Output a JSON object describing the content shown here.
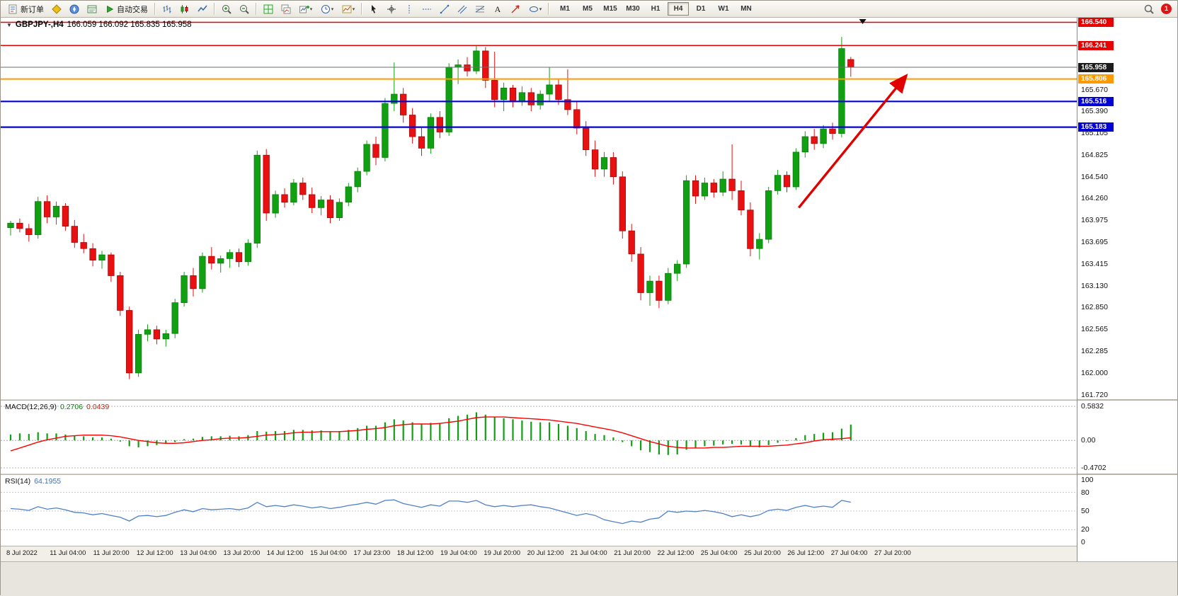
{
  "window": {
    "notification_count": "1"
  },
  "toolbar": {
    "new_order_label": "新订单",
    "auto_trading_label": "自动交易",
    "timeframes": [
      "M1",
      "M5",
      "M15",
      "M30",
      "H1",
      "H4",
      "D1",
      "W1",
      "MN"
    ],
    "active_timeframe": "H4",
    "icon_buttons": [
      "new-order",
      "market-watch",
      "navigator",
      "terminal",
      "auto-trading",
      "bar-chart",
      "candlestick-chart",
      "line-chart",
      "zoom-in",
      "zoom-out",
      "tile-windows",
      "cascade-windows",
      "indicators",
      "periods",
      "templates",
      "cursor",
      "crosshair",
      "vertical-line",
      "horizontal-line",
      "trendline",
      "channel",
      "fibonacci",
      "text",
      "arrows",
      "shapes",
      "search"
    ]
  },
  "chart": {
    "title_symbol": "GBPJPY-,H4",
    "title_ohlc": "166.059 166.092 165.835 165.958",
    "macd_label": "MACD(12,26,9)",
    "macd_values": {
      "main": "0.2706",
      "signal": "0.0439"
    },
    "rsi_label": "RSI(14)",
    "rsi_value": "64.1955",
    "price_ticks": [
      "165.670",
      "165.390",
      "165.105",
      "164.825",
      "164.540",
      "164.260",
      "163.975",
      "163.695",
      "163.415",
      "163.130",
      "162.850",
      "162.565",
      "162.285",
      "162.000",
      "161.720"
    ],
    "level_tags": [
      {
        "label": "166.540",
        "price": 166.54,
        "line_color": "#e80000",
        "line_width": 1.5,
        "tag_color": "#e80000"
      },
      {
        "label": "166.241",
        "price": 166.241,
        "line_color": "#e80000",
        "line_width": 1.5,
        "tag_color": "#e80000"
      },
      {
        "label": "165.958",
        "price": 165.958,
        "line_color": "#6e6e6e",
        "line_width": 1,
        "tag_color": "#1c1c1c"
      },
      {
        "label": "165.806",
        "price": 165.806,
        "line_color": "#ff9a00",
        "line_width": 2,
        "tag_color": "#ff9a00"
      },
      {
        "label": "165.516",
        "price": 165.516,
        "line_color": "#0202d6",
        "line_width": 2.2,
        "tag_color": "#0202d6"
      },
      {
        "label": "165.183",
        "price": 165.183,
        "line_color": "#0202d6",
        "line_width": 2.2,
        "tag_color": "#0202d6"
      }
    ],
    "macd_scale": [
      "0.5832",
      "0.00",
      "-0.4702"
    ],
    "rsi_scale": [
      "100",
      "80",
      "50",
      "20",
      "0"
    ],
    "time_labels": [
      "8 Jul 2022",
      "11 Jul 04:00",
      "11 Jul 20:00",
      "12 Jul 12:00",
      "13 Jul 04:00",
      "13 Jul 20:00",
      "14 Jul 12:00",
      "15 Jul 04:00",
      "17 Jul 23:00",
      "18 Jul 12:00",
      "19 Jul 04:00",
      "19 Jul 20:00",
      "20 Jul 12:00",
      "21 Jul 04:00",
      "21 Jul 20:00",
      "22 Jul 12:00",
      "25 Jul 04:00",
      "25 Jul 20:00",
      "26 Jul 12:00",
      "27 Jul 04:00",
      "27 Jul 20:00"
    ]
  },
  "chart_data": {
    "type": "candlestick",
    "symbol": "GBPJPY-",
    "timeframe": "H4",
    "title": "GBPJPY-,H4 166.059 166.092 165.835 165.958",
    "price_range": [
      161.66,
      166.6
    ],
    "ohlc": [
      [
        163.88,
        163.97,
        163.78,
        163.94
      ],
      [
        163.94,
        164.0,
        163.82,
        163.87
      ],
      [
        163.87,
        163.93,
        163.7,
        163.79
      ],
      [
        163.79,
        164.28,
        163.74,
        164.22
      ],
      [
        164.22,
        164.3,
        163.94,
        164.02
      ],
      [
        164.02,
        164.22,
        163.92,
        164.16
      ],
      [
        164.16,
        164.2,
        163.84,
        163.9
      ],
      [
        163.9,
        163.98,
        163.62,
        163.69
      ],
      [
        163.69,
        163.8,
        163.55,
        163.61
      ],
      [
        163.61,
        163.68,
        163.38,
        163.46
      ],
      [
        163.46,
        163.58,
        163.35,
        163.53
      ],
      [
        163.53,
        163.56,
        163.18,
        163.26
      ],
      [
        163.26,
        163.31,
        162.74,
        162.81
      ],
      [
        162.81,
        162.86,
        161.92,
        162.0
      ],
      [
        162.0,
        162.56,
        161.95,
        162.5
      ],
      [
        162.5,
        162.63,
        162.41,
        162.56
      ],
      [
        162.56,
        162.61,
        162.37,
        162.44
      ],
      [
        162.44,
        162.56,
        162.34,
        162.51
      ],
      [
        162.51,
        162.96,
        162.45,
        162.91
      ],
      [
        162.91,
        163.31,
        162.86,
        163.26
      ],
      [
        163.26,
        163.36,
        162.99,
        163.09
      ],
      [
        163.09,
        163.56,
        163.04,
        163.51
      ],
      [
        163.51,
        163.63,
        163.34,
        163.42
      ],
      [
        163.42,
        163.52,
        163.3,
        163.48
      ],
      [
        163.48,
        163.6,
        163.36,
        163.56
      ],
      [
        163.56,
        163.61,
        163.37,
        163.44
      ],
      [
        163.44,
        163.73,
        163.39,
        163.68
      ],
      [
        163.68,
        164.88,
        163.62,
        164.82
      ],
      [
        164.82,
        164.9,
        163.97,
        164.07
      ],
      [
        164.07,
        164.36,
        164.01,
        164.31
      ],
      [
        164.31,
        164.39,
        164.14,
        164.21
      ],
      [
        164.21,
        164.51,
        164.17,
        164.46
      ],
      [
        164.46,
        164.53,
        164.24,
        164.31
      ],
      [
        164.31,
        164.4,
        164.07,
        164.14
      ],
      [
        164.14,
        164.29,
        164.04,
        164.24
      ],
      [
        164.24,
        164.3,
        163.94,
        164.01
      ],
      [
        164.01,
        164.26,
        163.97,
        164.21
      ],
      [
        164.21,
        164.46,
        164.16,
        164.41
      ],
      [
        164.41,
        164.66,
        164.34,
        164.61
      ],
      [
        164.61,
        165.01,
        164.56,
        164.96
      ],
      [
        164.96,
        165.06,
        164.69,
        164.79
      ],
      [
        164.79,
        165.56,
        164.74,
        165.49
      ],
      [
        165.49,
        166.02,
        165.39,
        165.61
      ],
      [
        165.61,
        165.69,
        165.24,
        165.34
      ],
      [
        165.34,
        165.43,
        164.97,
        165.06
      ],
      [
        165.06,
        165.19,
        164.81,
        164.91
      ],
      [
        164.91,
        165.36,
        164.84,
        165.31
      ],
      [
        165.31,
        165.39,
        165.04,
        165.12
      ],
      [
        165.12,
        166.01,
        165.07,
        165.96
      ],
      [
        165.96,
        166.06,
        165.74,
        165.99
      ],
      [
        165.99,
        166.09,
        165.84,
        165.91
      ],
      [
        165.91,
        166.24,
        165.87,
        166.17
      ],
      [
        166.17,
        166.22,
        165.69,
        165.79
      ],
      [
        165.79,
        166.16,
        165.44,
        165.54
      ],
      [
        165.54,
        165.76,
        165.39,
        165.69
      ],
      [
        165.69,
        165.73,
        165.44,
        165.51
      ],
      [
        165.51,
        165.71,
        165.46,
        165.63
      ],
      [
        165.63,
        165.69,
        165.39,
        165.47
      ],
      [
        165.47,
        165.66,
        165.41,
        165.61
      ],
      [
        165.61,
        165.96,
        165.51,
        165.73
      ],
      [
        165.73,
        165.81,
        165.47,
        165.54
      ],
      [
        165.54,
        165.93,
        165.34,
        165.41
      ],
      [
        165.41,
        165.51,
        165.09,
        165.17
      ],
      [
        165.17,
        165.26,
        164.81,
        164.89
      ],
      [
        164.89,
        165.01,
        164.54,
        164.64
      ],
      [
        164.64,
        164.86,
        164.54,
        164.79
      ],
      [
        164.79,
        164.86,
        164.44,
        164.54
      ],
      [
        164.54,
        164.61,
        163.74,
        163.84
      ],
      [
        163.84,
        163.93,
        163.44,
        163.54
      ],
      [
        163.54,
        163.63,
        162.94,
        163.04
      ],
      [
        163.04,
        163.26,
        162.87,
        163.19
      ],
      [
        163.19,
        163.26,
        162.84,
        162.94
      ],
      [
        162.94,
        163.36,
        162.89,
        163.29
      ],
      [
        163.29,
        163.46,
        163.19,
        163.41
      ],
      [
        163.41,
        164.56,
        163.36,
        164.49
      ],
      [
        164.49,
        164.56,
        164.19,
        164.29
      ],
      [
        164.29,
        164.53,
        164.24,
        164.46
      ],
      [
        164.46,
        164.51,
        164.27,
        164.34
      ],
      [
        164.34,
        164.61,
        164.29,
        164.51
      ],
      [
        164.51,
        164.96,
        164.24,
        164.36
      ],
      [
        164.36,
        164.49,
        164.04,
        164.11
      ],
      [
        164.11,
        164.21,
        163.51,
        163.61
      ],
      [
        163.61,
        163.81,
        163.47,
        163.73
      ],
      [
        163.73,
        164.41,
        163.68,
        164.36
      ],
      [
        164.36,
        164.63,
        164.31,
        164.56
      ],
      [
        164.56,
        164.61,
        164.34,
        164.41
      ],
      [
        164.41,
        164.91,
        164.37,
        164.86
      ],
      [
        164.86,
        165.13,
        164.79,
        165.06
      ],
      [
        165.06,
        165.16,
        164.89,
        164.97
      ],
      [
        164.97,
        165.21,
        164.91,
        165.16
      ],
      [
        165.16,
        165.24,
        165.02,
        165.1
      ],
      [
        165.1,
        166.35,
        165.05,
        166.2
      ],
      [
        166.059,
        166.092,
        165.835,
        165.958
      ]
    ],
    "indicators": [
      {
        "name": "MACD(12,26,9)",
        "type": "histogram_line",
        "current_main": 0.2706,
        "current_signal": 0.0439,
        "range": [
          -0.4702,
          0.5832
        ],
        "histogram": [
          0.1,
          0.12,
          0.11,
          0.14,
          0.12,
          0.12,
          0.1,
          0.08,
          0.07,
          0.05,
          0.05,
          0.03,
          -0.02,
          -0.1,
          -0.12,
          -0.1,
          -0.08,
          -0.06,
          -0.03,
          0.02,
          0.03,
          0.06,
          0.07,
          0.07,
          0.08,
          0.07,
          0.09,
          0.16,
          0.15,
          0.16,
          0.16,
          0.18,
          0.18,
          0.17,
          0.17,
          0.15,
          0.16,
          0.18,
          0.21,
          0.25,
          0.25,
          0.31,
          0.36,
          0.34,
          0.31,
          0.28,
          0.3,
          0.3,
          0.38,
          0.42,
          0.44,
          0.48,
          0.44,
          0.4,
          0.38,
          0.36,
          0.34,
          0.32,
          0.31,
          0.31,
          0.28,
          0.25,
          0.21,
          0.16,
          0.11,
          0.09,
          0.05,
          -0.03,
          -0.1,
          -0.17,
          -0.2,
          -0.24,
          -0.25,
          -0.24,
          -0.16,
          -0.13,
          -0.1,
          -0.09,
          -0.07,
          -0.06,
          -0.07,
          -0.1,
          -0.12,
          -0.08,
          -0.04,
          -0.01,
          0.04,
          0.09,
          0.11,
          0.13,
          0.14,
          0.2,
          0.2706
        ],
        "signal": [
          -0.18,
          -0.13,
          -0.08,
          -0.03,
          0.01,
          0.04,
          0.07,
          0.08,
          0.09,
          0.09,
          0.09,
          0.08,
          0.06,
          0.03,
          0.0,
          -0.02,
          -0.04,
          -0.05,
          -0.05,
          -0.04,
          -0.02,
          0.0,
          0.01,
          0.03,
          0.04,
          0.04,
          0.05,
          0.07,
          0.09,
          0.1,
          0.11,
          0.13,
          0.14,
          0.14,
          0.15,
          0.15,
          0.15,
          0.16,
          0.17,
          0.19,
          0.2,
          0.22,
          0.25,
          0.27,
          0.28,
          0.28,
          0.28,
          0.29,
          0.31,
          0.33,
          0.36,
          0.39,
          0.4,
          0.4,
          0.4,
          0.39,
          0.38,
          0.37,
          0.36,
          0.35,
          0.33,
          0.31,
          0.29,
          0.26,
          0.23,
          0.2,
          0.17,
          0.13,
          0.08,
          0.03,
          -0.02,
          -0.06,
          -0.1,
          -0.12,
          -0.13,
          -0.13,
          -0.13,
          -0.12,
          -0.12,
          -0.11,
          -0.1,
          -0.1,
          -0.1,
          -0.1,
          -0.09,
          -0.08,
          -0.06,
          -0.04,
          -0.01,
          0.01,
          0.02,
          0.03,
          0.0439
        ]
      },
      {
        "name": "RSI(14)",
        "type": "line",
        "current": 64.1955,
        "range": [
          0,
          100
        ],
        "levels": [
          80,
          50,
          20
        ],
        "values": [
          54,
          53,
          51,
          57,
          53,
          55,
          52,
          48,
          47,
          44,
          46,
          43,
          40,
          34,
          42,
          43,
          41,
          43,
          48,
          52,
          49,
          54,
          52,
          53,
          54,
          52,
          55,
          64,
          57,
          59,
          57,
          60,
          58,
          55,
          57,
          54,
          56,
          59,
          61,
          64,
          61,
          67,
          68,
          62,
          59,
          56,
          60,
          58,
          66,
          66,
          64,
          67,
          60,
          57,
          59,
          57,
          59,
          60,
          57,
          55,
          51,
          47,
          43,
          46,
          43,
          36,
          33,
          30,
          34,
          32,
          37,
          39,
          50,
          48,
          50,
          49,
          51,
          49,
          46,
          41,
          44,
          41,
          44,
          51,
          53,
          51,
          56,
          59,
          56,
          58,
          56,
          67,
          64.1955
        ]
      }
    ],
    "annotations": {
      "trend_arrow": {
        "from_bar": 86.3,
        "from_price": 164.14,
        "to_bar": 98.0,
        "to_price": 165.84
      },
      "top_marker_bar": 93.3
    },
    "colors": {
      "up": "#10a012",
      "down": "#e81010",
      "up_border": "#067a08",
      "down_border": "#990505",
      "macd_hist": "#10a012",
      "macd_signal": "#ff0000",
      "rsi": "#4f81c7",
      "arrow": "#e00000"
    }
  }
}
